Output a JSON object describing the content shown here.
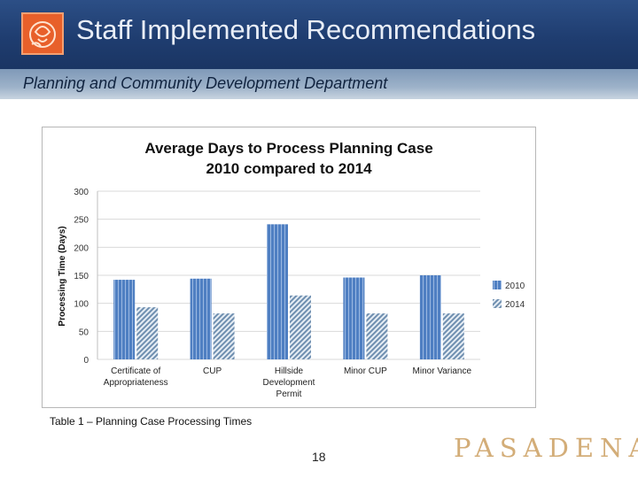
{
  "slide": {
    "title": "Staff Implemented Recommendations",
    "subtitle": "Planning and Community Development Department",
    "caption": "Table 1 – Planning Case Processing Times",
    "page_number": "18",
    "brand": "PASADENA",
    "colors": {
      "title_bar": "#1f3d70",
      "subtitle_bar": "#9db2c9",
      "logo": "#e8602a",
      "brand": "#d3ad78"
    }
  },
  "chart_data": {
    "type": "bar",
    "title": "Average Days to Process Planning Case",
    "subtitle": "2010 compared to 2014",
    "xlabel": "",
    "ylabel": "Processing Time (Days)",
    "ylim": [
      0,
      300
    ],
    "yticks": [
      "0",
      "50",
      "100",
      "150",
      "200",
      "250",
      "300"
    ],
    "categories": [
      [
        "Certificate of",
        "Appropriateness"
      ],
      [
        "CUP"
      ],
      [
        "Hillside",
        "Development",
        "Permit"
      ],
      [
        "Minor CUP"
      ],
      [
        "Minor Variance"
      ]
    ],
    "series": [
      {
        "name": "2010",
        "values": [
          142,
          144,
          241,
          146,
          150
        ],
        "color": "#4f7fc2"
      },
      {
        "name": "2014",
        "values": [
          93,
          82,
          114,
          82,
          82
        ],
        "color": "#7d9bb8"
      }
    ],
    "grid": true,
    "legend": "right"
  }
}
